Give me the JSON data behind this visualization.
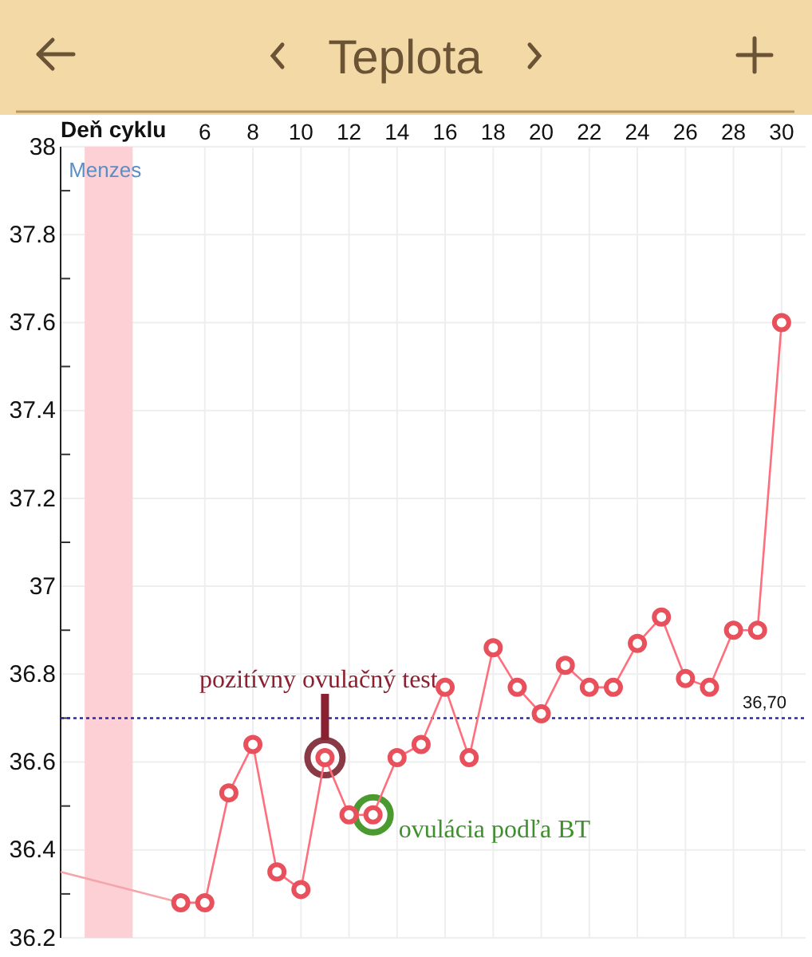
{
  "chart_data": {
    "type": "line",
    "title": "Teplota",
    "xlabel": "Deň cyklu",
    "xlim": [
      0,
      31
    ],
    "xticks": [
      6,
      8,
      10,
      12,
      14,
      16,
      18,
      20,
      22,
      24,
      26,
      28,
      30
    ],
    "ylim": [
      36.2,
      38
    ],
    "yticks": [
      {
        "value": 36.2,
        "label": "36.2"
      },
      {
        "value": 36.3,
        "label": null
      },
      {
        "value": 36.4,
        "label": "36.4"
      },
      {
        "value": 36.5,
        "label": null
      },
      {
        "value": 36.6,
        "label": "36.6"
      },
      {
        "value": 36.7,
        "label": null
      },
      {
        "value": 36.8,
        "label": "36.8"
      },
      {
        "value": 36.9,
        "label": null
      },
      {
        "value": 37,
        "label": "37"
      },
      {
        "value": 37.1,
        "label": null
      },
      {
        "value": 37.2,
        "label": "37.2"
      },
      {
        "value": 37.3,
        "label": null
      },
      {
        "value": 37.4,
        "label": "37.4"
      },
      {
        "value": 37.5,
        "label": null
      },
      {
        "value": 37.6,
        "label": "37.6"
      },
      {
        "value": 37.7,
        "label": null
      },
      {
        "value": 37.8,
        "label": "37.8"
      },
      {
        "value": 37.9,
        "label": null
      },
      {
        "value": 38,
        "label": "38"
      }
    ],
    "grid": true,
    "marker": "circle",
    "line_style": "solid",
    "series": [
      {
        "color": "#f4a5a8",
        "type": "line",
        "marker": "none",
        "x": [
          0,
          5
        ],
        "values": [
          36.35,
          36.28
        ]
      },
      {
        "color": "#e8505b",
        "x": [
          5,
          6,
          7,
          8,
          9,
          10,
          11,
          12,
          13,
          14,
          15,
          16,
          17,
          18,
          19,
          20,
          21,
          22,
          23,
          24,
          25,
          26,
          27,
          28,
          29,
          30
        ],
        "values": [
          36.28,
          36.28,
          36.53,
          36.64,
          36.35,
          36.31,
          36.61,
          36.48,
          36.48,
          36.61,
          36.64,
          36.77,
          36.61,
          36.86,
          36.77,
          36.71,
          36.82,
          36.77,
          36.77,
          36.87,
          36.93,
          36.79,
          36.77,
          36.9,
          36.9,
          37.6
        ]
      }
    ],
    "ref_lines": [
      {
        "axis": "y",
        "value": 36.7,
        "label": "36,70",
        "color": "#2a2aa0",
        "line_style": "dotted"
      }
    ],
    "bands": [
      {
        "axis": "x",
        "from": 1,
        "to": 3,
        "label": "Menzes",
        "color": "#fcd0d4"
      }
    ],
    "annotations": [
      {
        "text": "pozitívny ovulačný test",
        "x": 11,
        "y": 36.61
      },
      {
        "text": "ovulácia podľa BT",
        "x": 13,
        "y": 36.48
      }
    ]
  }
}
